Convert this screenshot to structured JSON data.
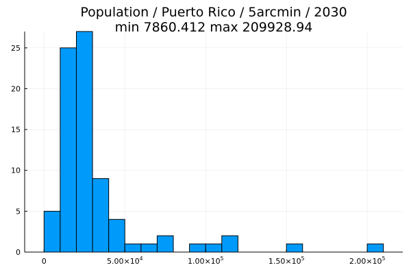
{
  "chart_data": {
    "type": "bar",
    "title": "Population / Puerto Rico / 5arcmin / 2030",
    "subtitle": "min 7860.412  max 209928.94",
    "bin_width": 10000,
    "bins": [
      {
        "start": 0,
        "end": 10000,
        "count": 5
      },
      {
        "start": 10000,
        "end": 20000,
        "count": 25
      },
      {
        "start": 20000,
        "end": 30000,
        "count": 27
      },
      {
        "start": 30000,
        "end": 40000,
        "count": 9
      },
      {
        "start": 40000,
        "end": 50000,
        "count": 4
      },
      {
        "start": 50000,
        "end": 60000,
        "count": 1
      },
      {
        "start": 60000,
        "end": 70000,
        "count": 1
      },
      {
        "start": 70000,
        "end": 80000,
        "count": 2
      },
      {
        "start": 90000,
        "end": 100000,
        "count": 1
      },
      {
        "start": 100000,
        "end": 110000,
        "count": 1
      },
      {
        "start": 110000,
        "end": 120000,
        "count": 2
      },
      {
        "start": 150000,
        "end": 160000,
        "count": 1
      },
      {
        "start": 200000,
        "end": 210000,
        "count": 1
      }
    ],
    "x_ticks": [
      {
        "value": 0,
        "mantissa": "0",
        "exp": ""
      },
      {
        "value": 50000,
        "mantissa": "5.00×10",
        "exp": "4"
      },
      {
        "value": 100000,
        "mantissa": "1.00×10",
        "exp": "5"
      },
      {
        "value": 150000,
        "mantissa": "1.50×10",
        "exp": "5"
      },
      {
        "value": 200000,
        "mantissa": "2.00×10",
        "exp": "5"
      }
    ],
    "y_ticks": [
      0,
      5,
      10,
      15,
      20,
      25
    ],
    "xlim": [
      -12000,
      222000
    ],
    "ylim": [
      0,
      27
    ],
    "grid": true,
    "legend": "none",
    "xlabel": "",
    "ylabel": "",
    "bar_color": "#009AFA",
    "bar_edge_color": "#000000"
  }
}
